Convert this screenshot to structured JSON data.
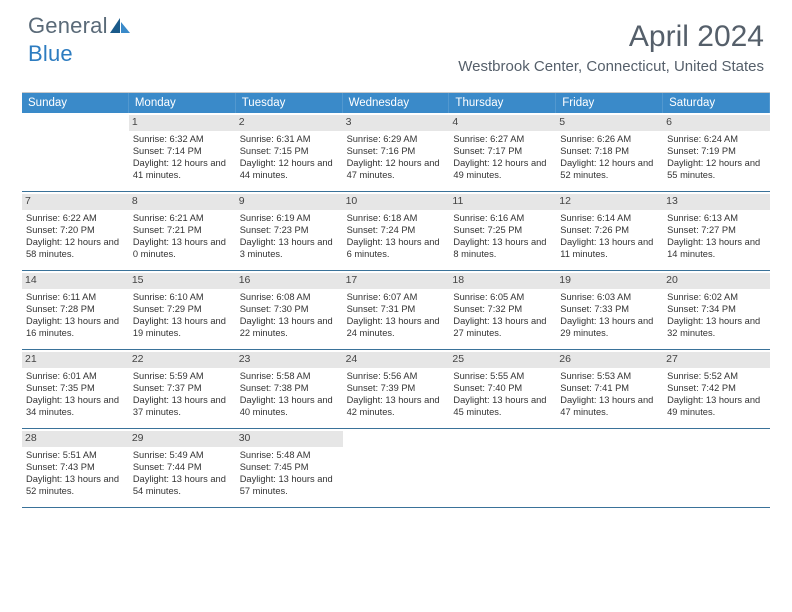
{
  "logo": {
    "text_gray": "General",
    "text_blue": "Blue"
  },
  "title": "April 2024",
  "subtitle": "Westbrook Center, Connecticut, United States",
  "colors": {
    "header_bg": "#3a8ac9",
    "header_fg": "#ffffff",
    "daynum_bg": "#e6e6e6",
    "week_border": "#3a7299",
    "body_text": "#333333",
    "title_text": "#555f6a"
  },
  "day_names": [
    "Sunday",
    "Monday",
    "Tuesday",
    "Wednesday",
    "Thursday",
    "Friday",
    "Saturday"
  ],
  "start_day_index": 1,
  "days": [
    {
      "n": 1,
      "sunrise": "6:32 AM",
      "sunset": "7:14 PM",
      "daylight": "12 hours and 41 minutes."
    },
    {
      "n": 2,
      "sunrise": "6:31 AM",
      "sunset": "7:15 PM",
      "daylight": "12 hours and 44 minutes."
    },
    {
      "n": 3,
      "sunrise": "6:29 AM",
      "sunset": "7:16 PM",
      "daylight": "12 hours and 47 minutes."
    },
    {
      "n": 4,
      "sunrise": "6:27 AM",
      "sunset": "7:17 PM",
      "daylight": "12 hours and 49 minutes."
    },
    {
      "n": 5,
      "sunrise": "6:26 AM",
      "sunset": "7:18 PM",
      "daylight": "12 hours and 52 minutes."
    },
    {
      "n": 6,
      "sunrise": "6:24 AM",
      "sunset": "7:19 PM",
      "daylight": "12 hours and 55 minutes."
    },
    {
      "n": 7,
      "sunrise": "6:22 AM",
      "sunset": "7:20 PM",
      "daylight": "12 hours and 58 minutes."
    },
    {
      "n": 8,
      "sunrise": "6:21 AM",
      "sunset": "7:21 PM",
      "daylight": "13 hours and 0 minutes."
    },
    {
      "n": 9,
      "sunrise": "6:19 AM",
      "sunset": "7:23 PM",
      "daylight": "13 hours and 3 minutes."
    },
    {
      "n": 10,
      "sunrise": "6:18 AM",
      "sunset": "7:24 PM",
      "daylight": "13 hours and 6 minutes."
    },
    {
      "n": 11,
      "sunrise": "6:16 AM",
      "sunset": "7:25 PM",
      "daylight": "13 hours and 8 minutes."
    },
    {
      "n": 12,
      "sunrise": "6:14 AM",
      "sunset": "7:26 PM",
      "daylight": "13 hours and 11 minutes."
    },
    {
      "n": 13,
      "sunrise": "6:13 AM",
      "sunset": "7:27 PM",
      "daylight": "13 hours and 14 minutes."
    },
    {
      "n": 14,
      "sunrise": "6:11 AM",
      "sunset": "7:28 PM",
      "daylight": "13 hours and 16 minutes."
    },
    {
      "n": 15,
      "sunrise": "6:10 AM",
      "sunset": "7:29 PM",
      "daylight": "13 hours and 19 minutes."
    },
    {
      "n": 16,
      "sunrise": "6:08 AM",
      "sunset": "7:30 PM",
      "daylight": "13 hours and 22 minutes."
    },
    {
      "n": 17,
      "sunrise": "6:07 AM",
      "sunset": "7:31 PM",
      "daylight": "13 hours and 24 minutes."
    },
    {
      "n": 18,
      "sunrise": "6:05 AM",
      "sunset": "7:32 PM",
      "daylight": "13 hours and 27 minutes."
    },
    {
      "n": 19,
      "sunrise": "6:03 AM",
      "sunset": "7:33 PM",
      "daylight": "13 hours and 29 minutes."
    },
    {
      "n": 20,
      "sunrise": "6:02 AM",
      "sunset": "7:34 PM",
      "daylight": "13 hours and 32 minutes."
    },
    {
      "n": 21,
      "sunrise": "6:01 AM",
      "sunset": "7:35 PM",
      "daylight": "13 hours and 34 minutes."
    },
    {
      "n": 22,
      "sunrise": "5:59 AM",
      "sunset": "7:37 PM",
      "daylight": "13 hours and 37 minutes."
    },
    {
      "n": 23,
      "sunrise": "5:58 AM",
      "sunset": "7:38 PM",
      "daylight": "13 hours and 40 minutes."
    },
    {
      "n": 24,
      "sunrise": "5:56 AM",
      "sunset": "7:39 PM",
      "daylight": "13 hours and 42 minutes."
    },
    {
      "n": 25,
      "sunrise": "5:55 AM",
      "sunset": "7:40 PM",
      "daylight": "13 hours and 45 minutes."
    },
    {
      "n": 26,
      "sunrise": "5:53 AM",
      "sunset": "7:41 PM",
      "daylight": "13 hours and 47 minutes."
    },
    {
      "n": 27,
      "sunrise": "5:52 AM",
      "sunset": "7:42 PM",
      "daylight": "13 hours and 49 minutes."
    },
    {
      "n": 28,
      "sunrise": "5:51 AM",
      "sunset": "7:43 PM",
      "daylight": "13 hours and 52 minutes."
    },
    {
      "n": 29,
      "sunrise": "5:49 AM",
      "sunset": "7:44 PM",
      "daylight": "13 hours and 54 minutes."
    },
    {
      "n": 30,
      "sunrise": "5:48 AM",
      "sunset": "7:45 PM",
      "daylight": "13 hours and 57 minutes."
    }
  ],
  "labels": {
    "sunrise": "Sunrise: ",
    "sunset": "Sunset: ",
    "daylight": "Daylight: "
  }
}
